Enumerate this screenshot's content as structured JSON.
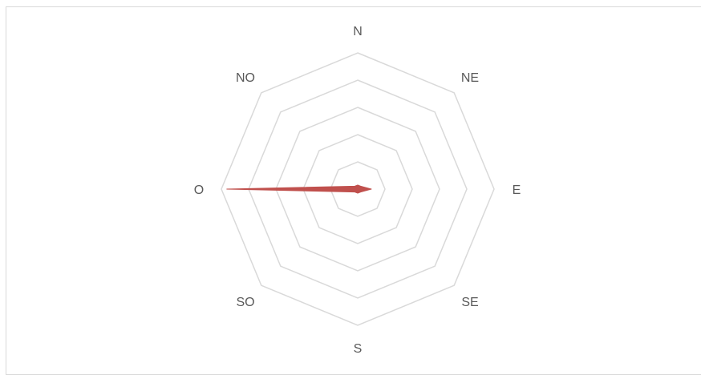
{
  "chart_data": {
    "type": "radar",
    "categories": [
      "N",
      "NE",
      "E",
      "SE",
      "S",
      "SO",
      "O",
      "NO"
    ],
    "series": [
      {
        "values": [
          0.15,
          0.15,
          0.5,
          0.15,
          0.15,
          0.15,
          4.8,
          0.15
        ],
        "color": "#c0504d"
      }
    ],
    "rlim": [
      0,
      5
    ],
    "ring_count": 5,
    "grid": true,
    "legend": "none"
  }
}
